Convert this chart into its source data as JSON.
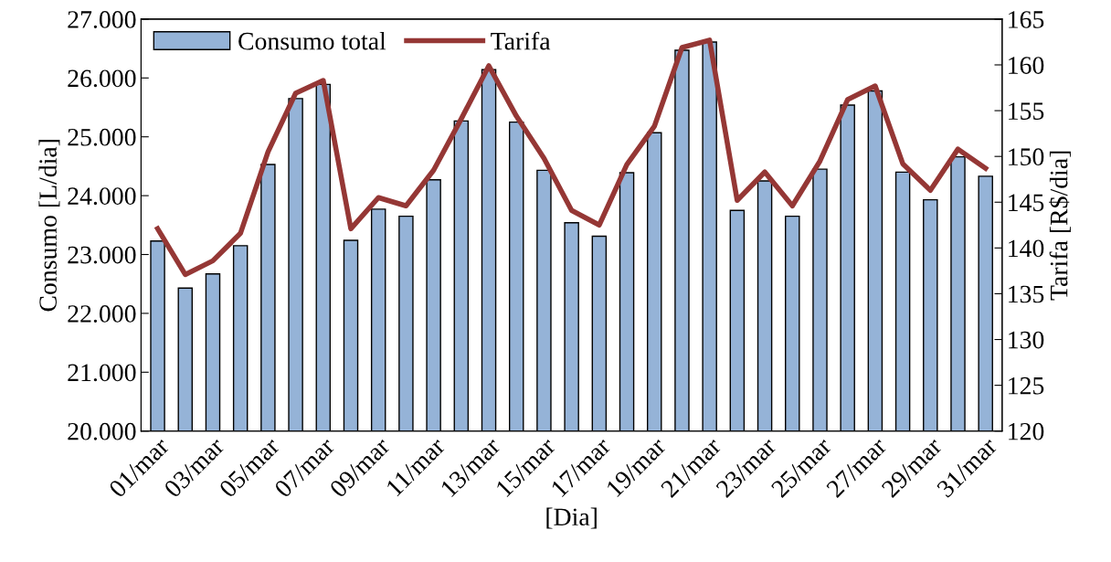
{
  "chart_data": {
    "type": "bar",
    "xlabel": "[Dia]",
    "ylabel": "Consumo [L/dia]",
    "y2label": "Tarifa [R$/dia]",
    "categories": [
      "01/mar",
      null,
      "03/mar",
      null,
      "05/mar",
      null,
      "07/mar",
      null,
      "09/mar",
      null,
      "11/mar",
      null,
      "13/mar",
      null,
      "15/mar",
      null,
      "17/mar",
      null,
      "19/mar",
      null,
      "21/mar",
      null,
      "23/mar",
      null,
      "25/mar",
      null,
      "27/mar",
      null,
      "29/mar",
      null,
      "31/mar"
    ],
    "series": [
      {
        "name": "Consumo total",
        "color": "#95b3d7",
        "values": [
          23230,
          22430,
          22670,
          23150,
          24530,
          25650,
          25890,
          23240,
          23770,
          23650,
          24270,
          25270,
          26140,
          25250,
          24430,
          23540,
          23310,
          24390,
          25070,
          26470,
          26610,
          23750,
          24250,
          23650,
          24450,
          25540,
          25780,
          24400,
          23930,
          24660,
          24330
        ]
      },
      {
        "name": "Tarifa",
        "type": "line",
        "axis": "y2",
        "color": "#953735",
        "values": [
          142.1,
          137.1,
          138.6,
          141.6,
          150.5,
          156.9,
          158.3,
          142.1,
          145.5,
          144.6,
          148.5,
          154.1,
          159.9,
          154.4,
          149.8,
          144.1,
          142.5,
          149.1,
          153.3,
          161.9,
          162.7,
          145.2,
          148.3,
          144.6,
          149.5,
          156.2,
          157.7,
          149.2,
          146.3,
          150.8,
          148.7
        ]
      }
    ],
    "ylim": [
      20000,
      27000
    ],
    "yticks": [
      {
        "value": 20000,
        "label": "20.000"
      },
      {
        "value": 21000,
        "label": "21.000"
      },
      {
        "value": 22000,
        "label": "22.000"
      },
      {
        "value": 23000,
        "label": "23.000"
      },
      {
        "value": 24000,
        "label": "24.000"
      },
      {
        "value": 25000,
        "label": "25.000"
      },
      {
        "value": 26000,
        "label": "26.000"
      },
      {
        "value": 27000,
        "label": "27.000"
      }
    ],
    "y2lim": [
      120,
      165
    ],
    "y2ticks": [
      120,
      125,
      130,
      135,
      140,
      145,
      150,
      155,
      160,
      165
    ],
    "grid": false,
    "legend": "top left",
    "marker": "none",
    "line_style": "solid"
  }
}
